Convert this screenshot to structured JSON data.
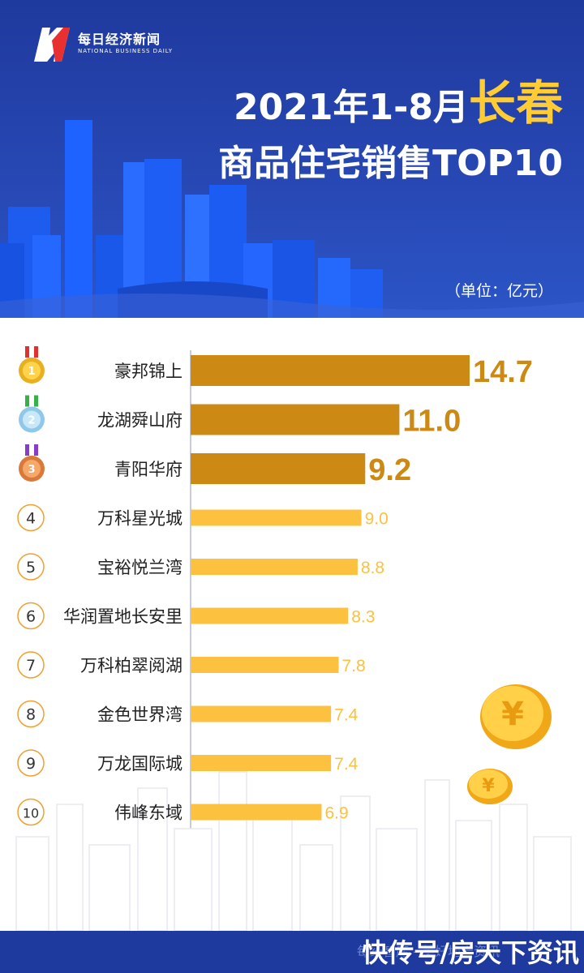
{
  "header": {
    "logo_cn": "每日经济新闻",
    "logo_en": "NATIONAL BUSINESS DAILY",
    "title_prefix": "2021年1-8月",
    "title_city": "长春",
    "title_line2": "商品住宅销售TOP10",
    "unit": "（单位：亿元）"
  },
  "colors": {
    "header_bg": "#2747b3",
    "top3_bar": "#cc8a14",
    "other_bar": "#fcc13f",
    "rank_circle": "#f0a030",
    "title_accent": "#ffcc33"
  },
  "chart_data": {
    "type": "bar",
    "orientation": "horizontal",
    "title": "2021年1-8月长春商品住宅销售TOP10",
    "unit": "亿元",
    "ranks": [
      "1",
      "2",
      "3",
      "4",
      "5",
      "6",
      "7",
      "8",
      "9",
      "10"
    ],
    "categories": [
      "豪邦锦上",
      "龙湖舜山府",
      "青阳华府",
      "万科星光城",
      "宝裕悦兰湾",
      "华润置地长安里",
      "万科柏翠阅湖",
      "金色世界湾",
      "万龙国际城",
      "伟峰东域"
    ],
    "values": [
      14.7,
      11.0,
      9.2,
      9.0,
      8.8,
      8.3,
      7.8,
      7.4,
      7.4,
      6.9
    ],
    "value_labels": [
      "14.7",
      "11.0",
      "9.2",
      "9.0",
      "8.8",
      "8.3",
      "7.8",
      "7.4",
      "7.4",
      "6.9"
    ],
    "highlight_top": 3,
    "grid": false
  },
  "footer": {
    "source": "每经智库 - 美好地产资讯",
    "watermark": "快传号/房天下资讯"
  }
}
